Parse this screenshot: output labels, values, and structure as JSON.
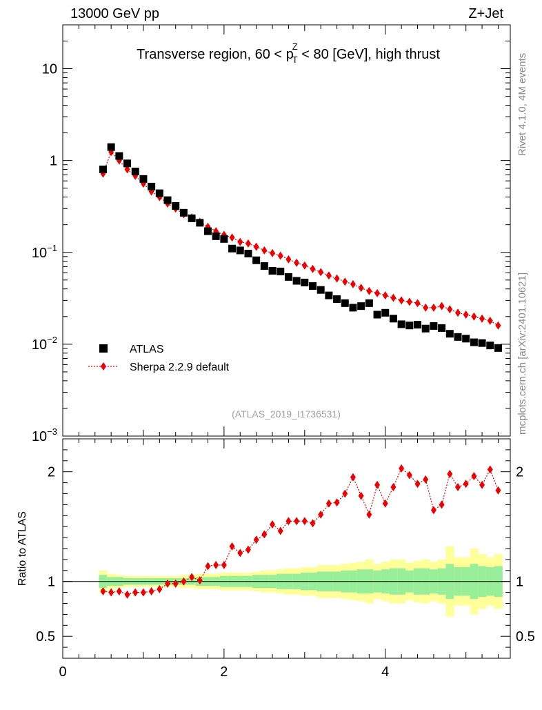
{
  "header": {
    "energy": "13000 GeV pp",
    "process": "Z+Jet"
  },
  "side_text": {
    "rivet": "Rivet 4.1.0,  4M events",
    "source": "mcplots.cern.ch [arXiv:2401.10621]"
  },
  "analysis_id": "(ATLAS_2019_I1736531)",
  "colors": {
    "data": "#000000",
    "mc": "#ee0000",
    "band_inner": "#99ee99",
    "band_outer": "#ffff99"
  },
  "chart_data": [
    {
      "type": "scatter",
      "title": "Transverse region, 60 < p_T^Z < 80 [GeV], high thrust",
      "title_parts": {
        "pre": "Transverse region, 60 < p",
        "sup": "Z",
        "sub": "T",
        "post": " < 80 [GeV], high thrust"
      },
      "yscale": "log",
      "ylim": [
        0.001,
        30
      ],
      "xlim": [
        0,
        5.55
      ],
      "yticks": [
        {
          "value": 10,
          "base": "10",
          "exp": ""
        },
        {
          "value": 1,
          "base": "1",
          "exp": ""
        },
        {
          "value": 0.1,
          "base": "10",
          "exp": "−1"
        },
        {
          "value": 0.01,
          "base": "10",
          "exp": "−2"
        },
        {
          "value": 0.001,
          "base": "10",
          "exp": "−3"
        }
      ],
      "legend": {
        "position": "lower-left",
        "entries": [
          "ATLAS",
          "Sherpa 2.2.9 default"
        ]
      },
      "x": [
        0.5,
        0.6,
        0.7,
        0.8,
        0.9,
        1.0,
        1.1,
        1.2,
        1.3,
        1.4,
        1.5,
        1.6,
        1.7,
        1.8,
        1.9,
        2.0,
        2.1,
        2.2,
        2.3,
        2.4,
        2.5,
        2.6,
        2.7,
        2.8,
        2.9,
        3.0,
        3.1,
        3.2,
        3.3,
        3.4,
        3.5,
        3.6,
        3.7,
        3.8,
        3.9,
        4.0,
        4.1,
        4.2,
        4.3,
        4.4,
        4.5,
        4.6,
        4.7,
        4.8,
        4.9,
        5.0,
        5.1,
        5.2,
        5.3,
        5.4
      ],
      "series": [
        {
          "name": "ATLAS",
          "values": [
            0.8,
            1.4,
            1.12,
            0.93,
            0.76,
            0.63,
            0.52,
            0.44,
            0.37,
            0.32,
            0.27,
            0.235,
            0.21,
            0.17,
            0.15,
            0.14,
            0.11,
            0.105,
            0.097,
            0.082,
            0.071,
            0.063,
            0.062,
            0.054,
            0.049,
            0.047,
            0.043,
            0.039,
            0.034,
            0.031,
            0.028,
            0.025,
            0.026,
            0.028,
            0.021,
            0.022,
            0.019,
            0.0165,
            0.016,
            0.0163,
            0.0148,
            0.0158,
            0.015,
            0.013,
            0.012,
            0.0115,
            0.0105,
            0.0103,
            0.0097,
            0.0091
          ]
        },
        {
          "name": "Sherpa 2.2.9 default",
          "values": [
            0.72,
            1.24,
            1.0,
            0.8,
            0.68,
            0.56,
            0.46,
            0.4,
            0.34,
            0.3,
            0.26,
            0.24,
            0.215,
            0.19,
            0.17,
            0.155,
            0.145,
            0.13,
            0.125,
            0.115,
            0.105,
            0.098,
            0.092,
            0.084,
            0.077,
            0.072,
            0.066,
            0.061,
            0.056,
            0.052,
            0.048,
            0.045,
            0.041,
            0.038,
            0.036,
            0.034,
            0.032,
            0.03,
            0.029,
            0.028,
            0.025,
            0.025,
            0.026,
            0.024,
            0.022,
            0.021,
            0.02,
            0.019,
            0.018,
            0.016
          ]
        }
      ]
    },
    {
      "type": "scatter",
      "ylabel": "Ratio to ATLAS",
      "ylim": [
        0.3,
        2.3
      ],
      "xlim": [
        0,
        5.55
      ],
      "xticks": [
        0,
        2,
        4
      ],
      "xtick_labels": [
        "0",
        "2",
        "4"
      ],
      "yticks": [
        2,
        1,
        0.5
      ],
      "ytick_labels": [
        "2",
        "1",
        "0.5"
      ],
      "x": [
        0.5,
        0.6,
        0.7,
        0.8,
        0.9,
        1.0,
        1.1,
        1.2,
        1.3,
        1.4,
        1.5,
        1.6,
        1.7,
        1.8,
        1.9,
        2.0,
        2.1,
        2.2,
        2.3,
        2.4,
        2.5,
        2.6,
        2.7,
        2.8,
        2.9,
        3.0,
        3.1,
        3.2,
        3.3,
        3.4,
        3.5,
        3.6,
        3.7,
        3.8,
        3.9,
        4.0,
        4.1,
        4.2,
        4.3,
        4.4,
        4.5,
        4.6,
        4.7,
        4.8,
        4.9,
        5.0,
        5.1,
        5.2,
        5.3,
        5.4
      ],
      "series": [
        {
          "name": "Sherpa 2.2.9 default / ATLAS",
          "values": [
            0.91,
            0.9,
            0.91,
            0.88,
            0.9,
            0.9,
            0.91,
            0.93,
            0.98,
            0.98,
            1.0,
            1.04,
            1.01,
            1.14,
            1.15,
            1.15,
            1.32,
            1.26,
            1.29,
            1.38,
            1.43,
            1.52,
            1.46,
            1.55,
            1.55,
            1.55,
            1.53,
            1.61,
            1.71,
            1.72,
            1.8,
            1.95,
            1.78,
            1.61,
            1.88,
            1.71,
            1.86,
            2.03,
            1.97,
            1.89,
            1.93,
            1.65,
            1.7,
            1.98,
            1.86,
            1.89,
            1.96,
            1.88,
            2.02,
            1.83
          ]
        }
      ],
      "band_inner_halfwidth": [
        0.06,
        0.04,
        0.04,
        0.03,
        0.03,
        0.03,
        0.03,
        0.03,
        0.03,
        0.03,
        0.03,
        0.03,
        0.04,
        0.04,
        0.04,
        0.05,
        0.05,
        0.05,
        0.05,
        0.06,
        0.06,
        0.06,
        0.07,
        0.07,
        0.07,
        0.08,
        0.08,
        0.09,
        0.09,
        0.09,
        0.1,
        0.1,
        0.11,
        0.11,
        0.1,
        0.11,
        0.12,
        0.12,
        0.1,
        0.12,
        0.12,
        0.11,
        0.12,
        0.16,
        0.13,
        0.13,
        0.16,
        0.14,
        0.13,
        0.14
      ],
      "band_outer_halfwidth": [
        0.1,
        0.07,
        0.06,
        0.05,
        0.05,
        0.05,
        0.05,
        0.05,
        0.05,
        0.05,
        0.06,
        0.06,
        0.07,
        0.07,
        0.07,
        0.08,
        0.08,
        0.08,
        0.08,
        0.09,
        0.1,
        0.1,
        0.11,
        0.12,
        0.12,
        0.13,
        0.13,
        0.15,
        0.15,
        0.15,
        0.16,
        0.17,
        0.18,
        0.2,
        0.16,
        0.18,
        0.2,
        0.2,
        0.17,
        0.19,
        0.2,
        0.18,
        0.2,
        0.32,
        0.22,
        0.22,
        0.3,
        0.25,
        0.22,
        0.25
      ]
    }
  ]
}
